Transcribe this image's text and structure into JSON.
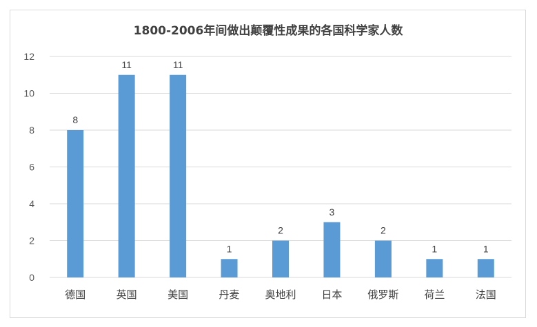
{
  "chart_data": {
    "type": "bar",
    "title": "1800-2006年间做出颠覆性成果的各国科学家人数",
    "categories": [
      "德国",
      "英国",
      "美国",
      "丹麦",
      "奥地利",
      "日本",
      "俄罗斯",
      "荷兰",
      "法国"
    ],
    "values": [
      8,
      11,
      11,
      1,
      2,
      3,
      2,
      1,
      1
    ],
    "ylim": [
      0,
      12
    ],
    "yticks": [
      0,
      2,
      4,
      6,
      8,
      10,
      12
    ],
    "grid": true,
    "data_labels": true,
    "bar_color": "#5b9bd5",
    "grid_color": "#d9d9d9"
  }
}
